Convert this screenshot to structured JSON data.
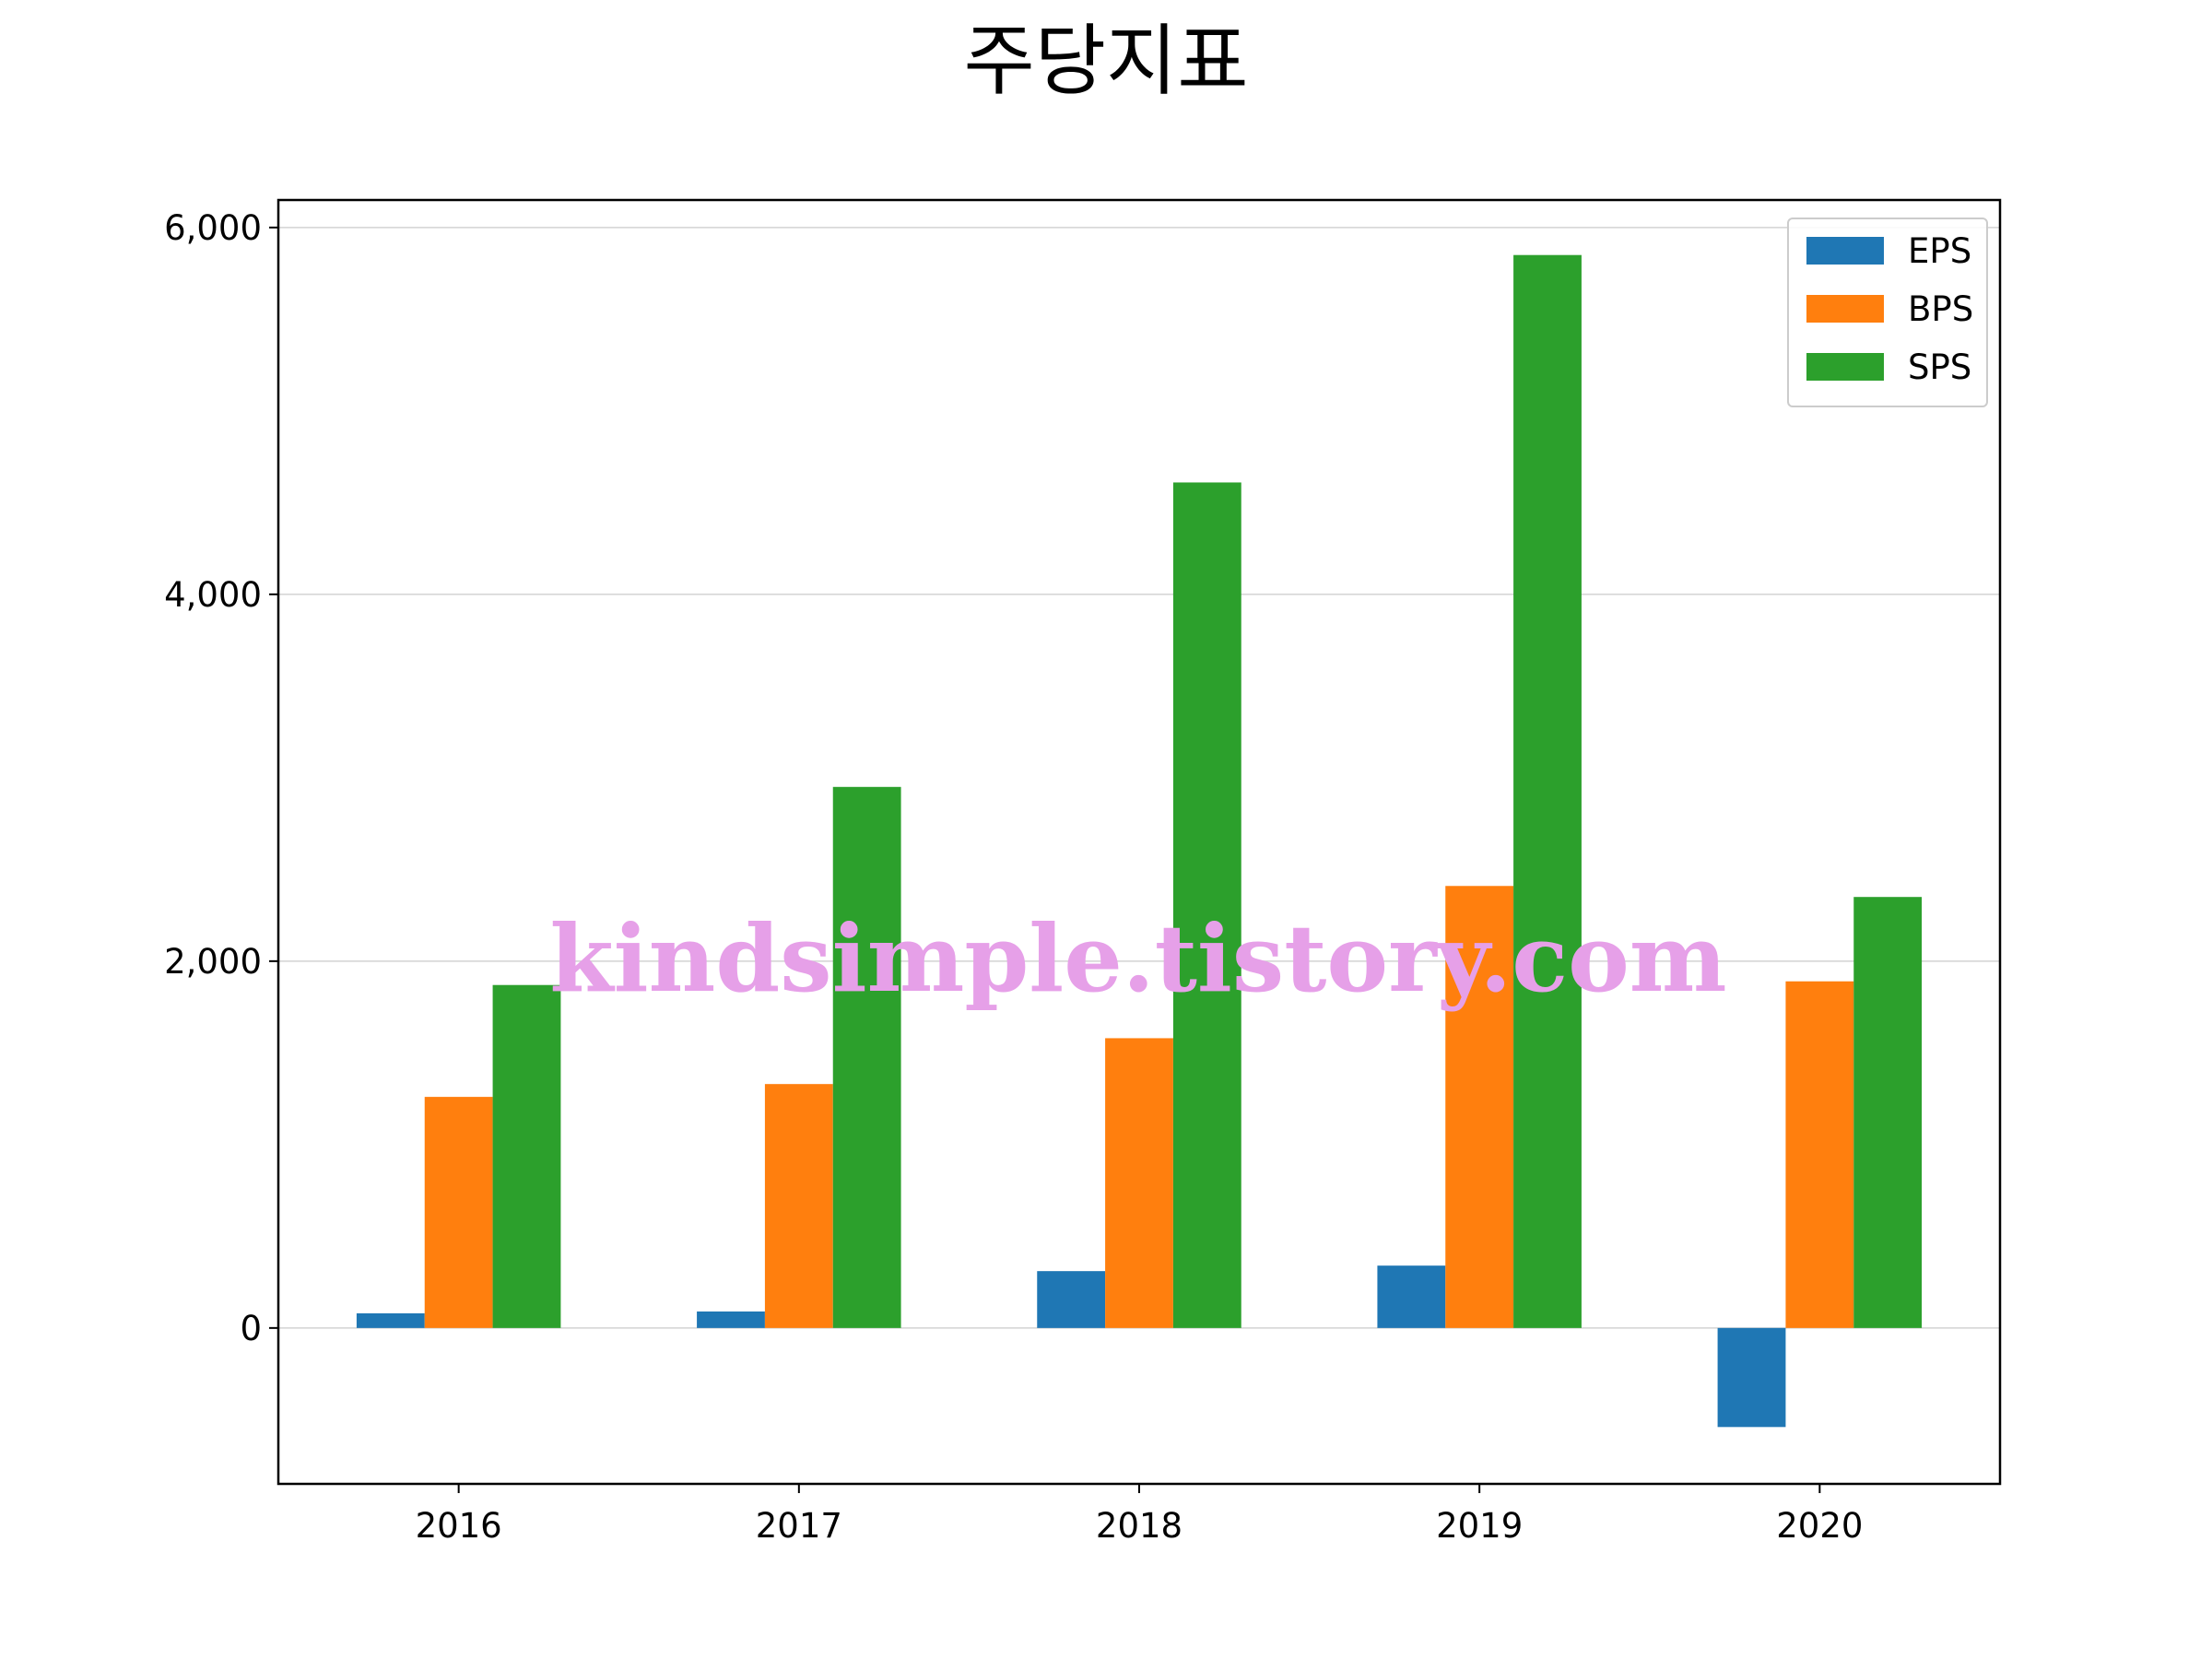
{
  "colors": {
    "EPS": "#1f77b4",
    "BPS": "#ff7f0e",
    "SPS": "#2ca02c",
    "grid": "#d3d3d3",
    "watermark": "#e6a0e8"
  },
  "chart_data": {
    "type": "bar",
    "title": "주당지표",
    "xlabel": "",
    "ylabel": "",
    "categories": [
      "2016",
      "2017",
      "2018",
      "2019",
      "2020"
    ],
    "series": [
      {
        "name": "EPS",
        "values": [
          80,
          90,
          310,
          340,
          -540
        ]
      },
      {
        "name": "BPS",
        "values": [
          1260,
          1330,
          1580,
          2410,
          1890
        ]
      },
      {
        "name": "SPS",
        "values": [
          1870,
          2950,
          4610,
          5850,
          2350
        ]
      }
    ],
    "ylim": [
      -850,
      6150
    ],
    "yticks": [
      0,
      2000,
      4000,
      6000
    ],
    "ytick_labels": [
      "0",
      "2,000",
      "4,000",
      "6,000"
    ],
    "grid": "horizontal",
    "legend": "upper-right",
    "watermark": "kindsimple.tistory.com"
  }
}
